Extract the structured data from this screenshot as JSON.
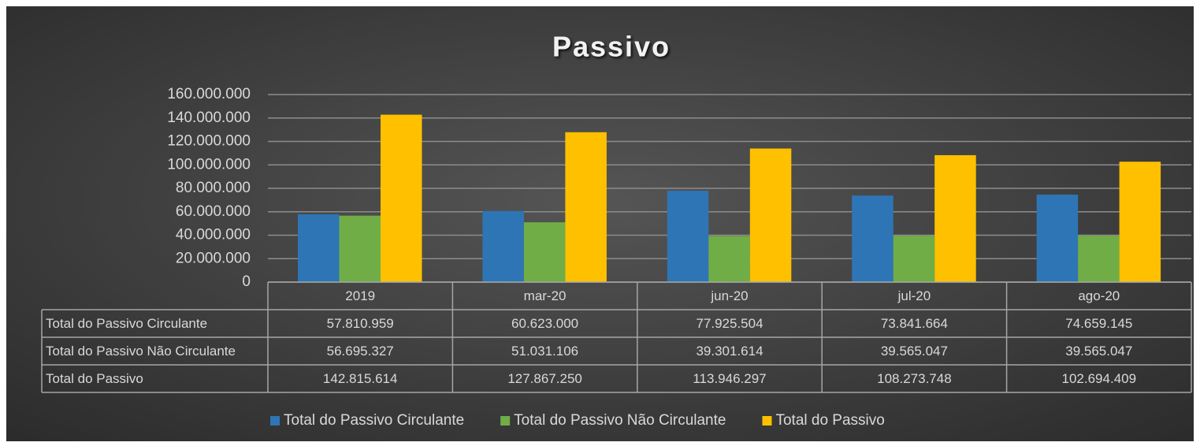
{
  "chart_data": {
    "type": "bar",
    "title": "Passivo",
    "categories": [
      "2019",
      "mar-20",
      "jun-20",
      "jul-20",
      "ago-20"
    ],
    "series": [
      {
        "name": "Total do Passivo Circulante",
        "color": "#2e75b6",
        "values": [
          57810959,
          60623000,
          77925504,
          73841664,
          74659145
        ],
        "value_labels": [
          "57.810.959",
          "60.623.000",
          "77.925.504",
          "73.841.664",
          "74.659.145"
        ]
      },
      {
        "name": "Total do Passivo Não Circulante",
        "color": "#70ad47",
        "values": [
          56695327,
          51031106,
          39301614,
          39565047,
          39565047
        ],
        "value_labels": [
          "56.695.327",
          "51.031.106",
          "39.301.614",
          "39.565.047",
          "39.565.047"
        ]
      },
      {
        "name": "Total do Passivo",
        "color": "#ffc000",
        "values": [
          142815614,
          127867250,
          113946297,
          108273748,
          102694409
        ],
        "value_labels": [
          "142.815.614",
          "127.867.250",
          "113.946.297",
          "108.273.748",
          "102.694.409"
        ]
      }
    ],
    "ylim": [
      0,
      160000000
    ],
    "yticks": [
      0,
      {
        "value": 20000000,
        "label": "20.000.000"
      },
      {
        "value": 40000000,
        "label": "40.000.000"
      },
      {
        "value": 60000000,
        "label": "60.000.000"
      },
      {
        "value": 80000000,
        "label": "80.000.000"
      },
      {
        "value": 100000000,
        "label": "100.000.000"
      },
      {
        "value": 120000000,
        "label": "120.000.000"
      },
      {
        "value": 140000000,
        "label": "140.000.000"
      },
      {
        "value": 160000000,
        "label": "160.000.000"
      }
    ],
    "grid": true,
    "legend": "bottom"
  }
}
